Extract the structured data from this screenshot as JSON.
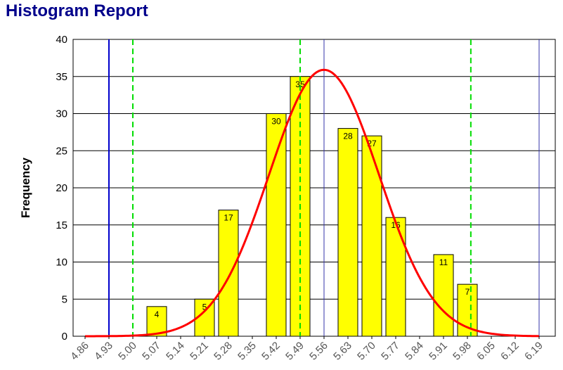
{
  "report": {
    "title": "Histogram Report"
  },
  "chart_data": {
    "type": "bar",
    "title": "Histogram Report",
    "xlabel": "",
    "ylabel": "Frequency",
    "ylim": [
      0,
      40
    ],
    "yticks": [
      0,
      5,
      10,
      15,
      20,
      25,
      30,
      35,
      40
    ],
    "xlim": [
      4.86,
      6.19
    ],
    "xtick_labels": [
      "4.86",
      "4.93",
      "5.00",
      "5.07",
      "5.14",
      "5.21",
      "5.28",
      "5.35",
      "5.42",
      "5.49",
      "5.56",
      "5.63",
      "5.70",
      "5.77",
      "5.84",
      "5.91",
      "5.98",
      "6.05",
      "6.12",
      "6.19"
    ],
    "bin_width": 0.07,
    "bars": [
      {
        "x": 5.07,
        "value": 4,
        "label": "4"
      },
      {
        "x": 5.21,
        "value": 5,
        "label": "5"
      },
      {
        "x": 5.28,
        "value": 17,
        "label": "17"
      },
      {
        "x": 5.42,
        "value": 30,
        "label": "30"
      },
      {
        "x": 5.49,
        "value": 35,
        "label": "35"
      },
      {
        "x": 5.63,
        "value": 28,
        "label": "28"
      },
      {
        "x": 5.7,
        "value": 27,
        "label": "27"
      },
      {
        "x": 5.77,
        "value": 16,
        "label": "16"
      },
      {
        "x": 5.91,
        "value": 11,
        "label": "11"
      },
      {
        "x": 5.98,
        "value": 7,
        "label": "7"
      }
    ],
    "normal_curve": {
      "mean": 5.56,
      "peak": 35.9,
      "sd": 0.161,
      "x_start": 4.86,
      "x_end": 6.19,
      "color": "#ff0000"
    },
    "reference_lines": [
      {
        "name": "spec-limit-lower",
        "x": 4.93,
        "style": "solid",
        "color": "#0000cc"
      },
      {
        "name": "control-limit-lower",
        "x": 5.0,
        "style": "dashed",
        "color": "#00dd00"
      },
      {
        "name": "sigma-line-lower",
        "x": 5.49,
        "style": "dashed",
        "color": "#00dd00"
      },
      {
        "name": "mean-line",
        "x": 5.56,
        "style": "solid",
        "color": "#3333aa"
      },
      {
        "name": "control-limit-upper",
        "x": 5.99,
        "style": "dashed",
        "color": "#00dd00"
      },
      {
        "name": "spec-limit-upper",
        "x": 6.19,
        "style": "solid",
        "color": "#3333aa"
      }
    ],
    "bar_color": "#ffff00",
    "grid": true
  }
}
